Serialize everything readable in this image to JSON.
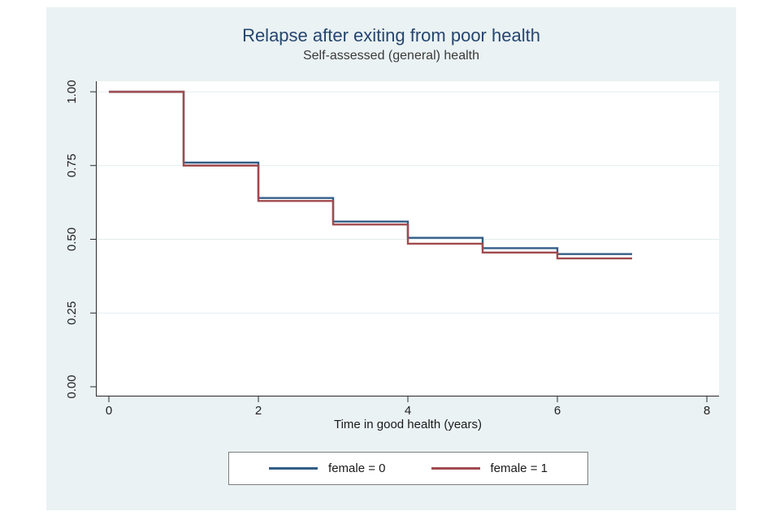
{
  "page": {
    "background": "#ffffff"
  },
  "figure": {
    "background": "#eaf2f3",
    "title_color": "#26466f",
    "subtitle_color": "#3a3a3a"
  },
  "chart_data": {
    "type": "line",
    "subtype": "kaplan-meier-step",
    "title": "Relapse after exiting from poor health",
    "subtitle": "Self-assessed (general) health",
    "xlabel": "Time in good health (years)",
    "ylabel": "",
    "xlim": [
      0,
      8
    ],
    "ylim": [
      0,
      1
    ],
    "xticks": [
      0,
      2,
      4,
      6,
      8
    ],
    "ytick_labels": [
      "0.00",
      "0.25",
      "0.50",
      "0.75",
      "1.00"
    ],
    "grid": "horizontal",
    "grid_color": "#e2edef",
    "axis_color": "#2a2a2a",
    "legend_position": "bottom",
    "x": [
      0,
      1,
      2,
      3,
      4,
      5,
      6,
      7
    ],
    "series": [
      {
        "name": "female = 0",
        "color": "#335d87",
        "step_values": [
          1.0,
          0.76,
          0.64,
          0.56,
          0.505,
          0.47,
          0.45,
          0.45
        ]
      },
      {
        "name": "female = 1",
        "color": "#a04a4e",
        "step_values": [
          1.0,
          0.75,
          0.63,
          0.55,
          0.485,
          0.455,
          0.435,
          0.435
        ]
      }
    ]
  }
}
